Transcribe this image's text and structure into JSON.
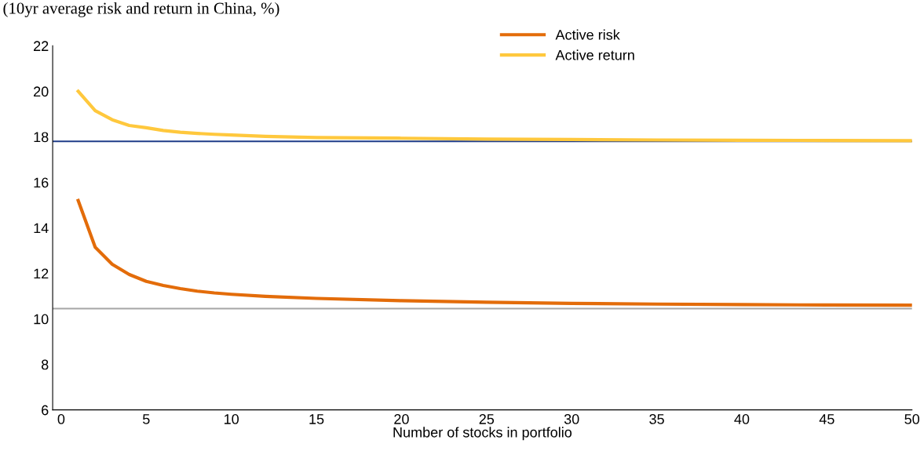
{
  "chart_data": {
    "type": "line",
    "title": "(10yr average risk and return in China, %)",
    "xlabel": "Number of stocks in portfolio",
    "x": [
      1,
      2,
      3,
      4,
      5,
      6,
      7,
      8,
      9,
      10,
      12,
      15,
      20,
      25,
      30,
      35,
      40,
      45,
      50
    ],
    "series": [
      {
        "name": "Active risk",
        "color": "#e36c0a",
        "values": [
          15.2,
          13.15,
          12.4,
          11.95,
          11.65,
          11.47,
          11.33,
          11.22,
          11.14,
          11.08,
          10.99,
          10.9,
          10.8,
          10.73,
          10.68,
          10.65,
          10.63,
          10.61,
          10.6
        ]
      },
      {
        "name": "Active return",
        "color": "#ffc83d",
        "values": [
          20.0,
          19.15,
          18.75,
          18.5,
          18.4,
          18.28,
          18.2,
          18.15,
          18.11,
          18.08,
          18.02,
          17.97,
          17.94,
          17.9,
          17.88,
          17.86,
          17.85,
          17.84,
          17.83
        ]
      }
    ],
    "ref_lines": [
      {
        "axis": "y",
        "value": 17.8,
        "color": "#1f3c88"
      },
      {
        "axis": "y",
        "value": 10.45,
        "color": "#a6a6a6"
      }
    ],
    "xlim": [
      -0.5,
      50
    ],
    "xticks": [
      0,
      5,
      10,
      15,
      20,
      25,
      30,
      35,
      40,
      45,
      50
    ],
    "ylim": [
      6,
      22
    ],
    "yticks": [
      6,
      8,
      10,
      12,
      14,
      16,
      18,
      20,
      22
    ],
    "grid": false,
    "legend": "top",
    "marker": "none",
    "line_style": "solid"
  }
}
